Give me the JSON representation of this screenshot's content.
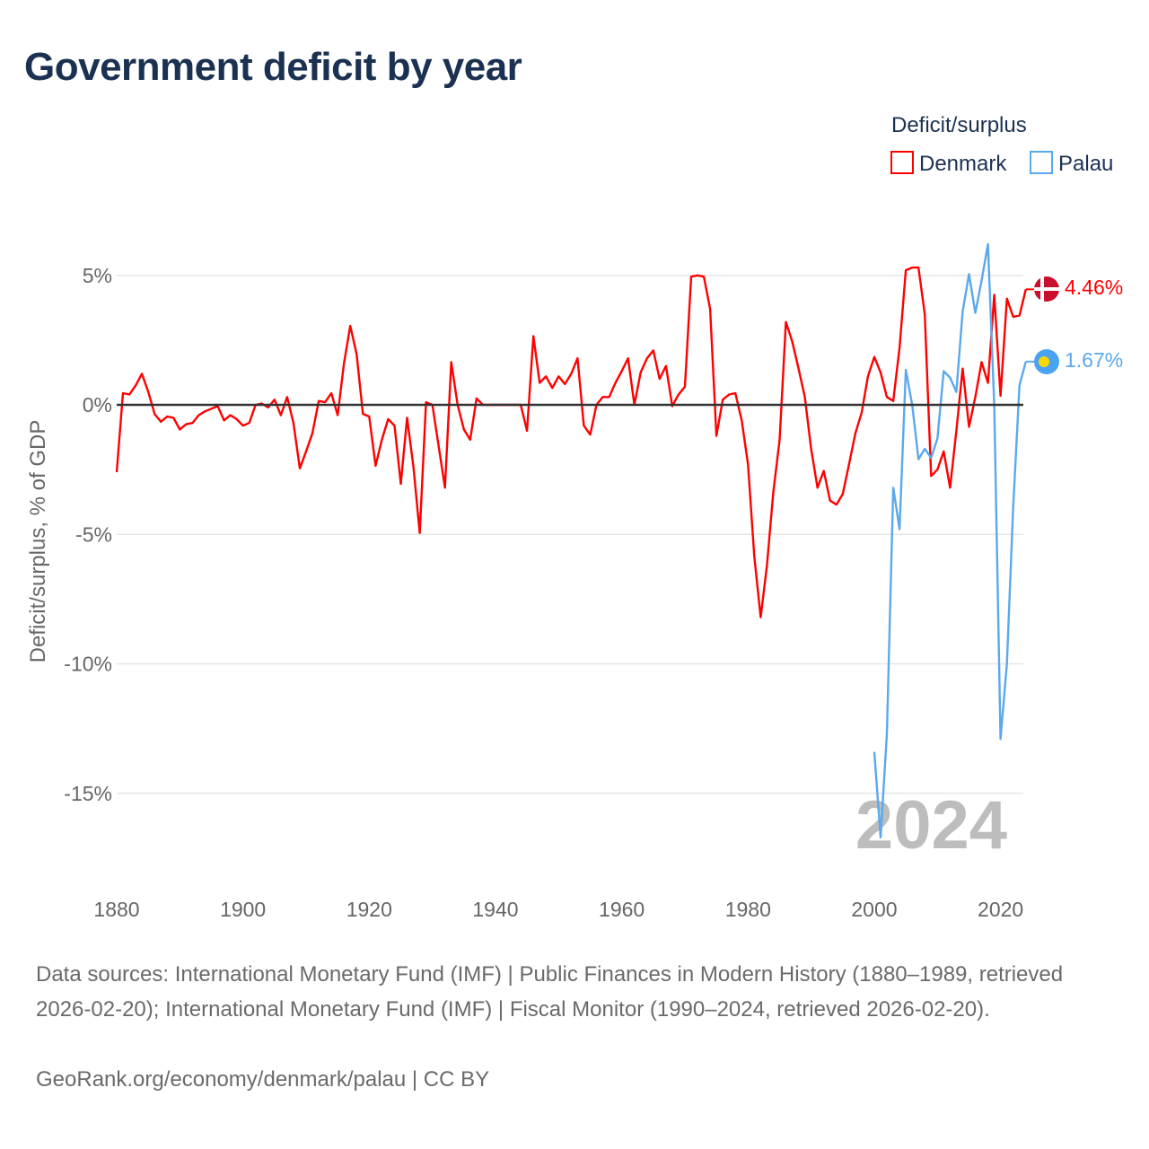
{
  "title": "Government deficit by year",
  "colors": {
    "Denmark": "#ff0000",
    "Palau": "#5ba8ec",
    "zero_line": "#333333",
    "grid": "#e6e6e6"
  },
  "chart_data": {
    "type": "line",
    "title": "Government deficit by year",
    "xlabel": "",
    "ylabel": "Deficit/surplus, % of GDP",
    "xlim": [
      1880,
      2024
    ],
    "ylim": [
      -17,
      6.5
    ],
    "x_ticks": [
      1880,
      1900,
      1920,
      1940,
      1960,
      1980,
      2000,
      2020
    ],
    "y_ticks": [
      5,
      0,
      -5,
      -10,
      -15
    ],
    "y_tick_labels": [
      "5%",
      "0%",
      "-5%",
      "-10%",
      "-15%"
    ],
    "grid": true,
    "legend": {
      "title": "Deficit/surplus",
      "placement": "top-right",
      "entries": [
        "Denmark",
        "Palau"
      ]
    },
    "watermark_year": "2024",
    "series": [
      {
        "name": "Denmark",
        "end_label": "4.46%",
        "start_year": 1880,
        "values": [
          -2.6,
          0.45,
          0.4,
          0.75,
          1.2,
          0.5,
          -0.35,
          -0.65,
          -0.45,
          -0.5,
          -0.95,
          -0.75,
          -0.7,
          -0.4,
          -0.25,
          -0.15,
          -0.05,
          -0.6,
          -0.4,
          -0.55,
          -0.8,
          -0.7,
          0,
          0.05,
          -0.1,
          0.2,
          -0.4,
          0.3,
          -0.7,
          -2.45,
          -1.8,
          -1.1,
          0.15,
          0.1,
          0.45,
          -0.4,
          1.6,
          3.05,
          1.95,
          -0.35,
          -0.45,
          -2.35,
          -1.35,
          -0.55,
          -0.8,
          -3.05,
          -0.5,
          -2.4,
          -4.95,
          0.1,
          0,
          -1.6,
          -3.2,
          1.65,
          0,
          -0.95,
          -1.35,
          0.25,
          0,
          0,
          0,
          0,
          0,
          0,
          0,
          -1.0,
          2.65,
          0.85,
          1.1,
          0.65,
          1.1,
          0.8,
          1.2,
          1.8,
          -0.8,
          -1.15,
          0,
          0.3,
          0.3,
          0.85,
          1.3,
          1.8,
          0,
          1.25,
          1.8,
          2.1,
          1.0,
          1.5,
          -0.05,
          0.4,
          0.7,
          4.95,
          5.0,
          4.95,
          3.7,
          -1.2,
          0.2,
          0.4,
          0.45,
          -0.6,
          -2.3,
          -5.85,
          -8.2,
          -6.2,
          -3.4,
          -1.35,
          3.2,
          2.45,
          1.4,
          0.3,
          -1.7,
          -3.2,
          -2.55,
          -3.7,
          -3.85,
          -3.45,
          -2.3,
          -1.1,
          -0.3,
          1.1,
          1.85,
          1.25,
          0.3,
          0.15,
          2.2,
          5.2,
          5.3,
          5.3,
          3.5,
          -2.75,
          -2.5,
          -1.8,
          -3.2,
          -1.0,
          1.4,
          -0.85,
          0.3,
          1.65,
          0.85,
          4.25,
          0.35,
          4.1,
          3.4,
          3.45,
          4.46
        ]
      },
      {
        "name": "Palau",
        "end_label": "1.67%",
        "start_year": 2000,
        "values": [
          -13.4,
          -16.7,
          -12.7,
          -3.2,
          -4.8,
          1.35,
          0,
          -2.1,
          -1.7,
          -2.05,
          -1.3,
          1.3,
          1.05,
          0.5,
          3.6,
          5.05,
          3.55,
          4.8,
          6.2,
          0,
          -12.9,
          -10,
          -3.95,
          0.75,
          1.67
        ]
      }
    ]
  },
  "footer": {
    "sources": "Data sources: International Monetary Fund (IMF) | Public Finances in Modern History (1880–1989, retrieved 2026-02-20); International Monetary Fund (IMF) | Fiscal Monitor (1990–2024, retrieved 2026-02-20).",
    "credit": "GeoRank.org/economy/denmark/palau | CC BY"
  }
}
